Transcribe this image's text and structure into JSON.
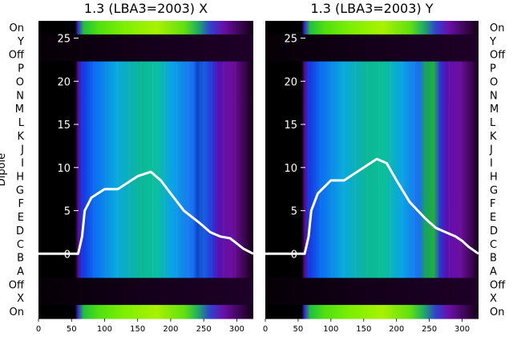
{
  "chart_data": [
    {
      "type": "heatmap",
      "title": "1.3 (LBA3=2003) X",
      "ylabel": "Dipole",
      "x_ticks": [
        0,
        50,
        100,
        150,
        200,
        250,
        300
      ],
      "xlim": [
        0,
        325
      ],
      "overlay_ylim": [
        -7.5,
        27
      ],
      "overlay_yticks": [
        0,
        5,
        10,
        15,
        20,
        25
      ],
      "dipole_labels": [
        "On",
        "Y",
        "Off",
        "P",
        "O",
        "N",
        "M",
        "L",
        "K",
        "J",
        "I",
        "H",
        "G",
        "F",
        "E",
        "D",
        "C",
        "B",
        "A",
        "Off",
        "X",
        "On"
      ],
      "overlay_series": {
        "x": [
          0,
          60,
          66,
          70,
          80,
          100,
          120,
          150,
          170,
          185,
          200,
          220,
          245,
          260,
          275,
          290,
          300,
          310,
          325
        ],
        "values": [
          0,
          0,
          2,
          5,
          6.5,
          7.5,
          7.5,
          9,
          9.5,
          8.5,
          7,
          5,
          3.5,
          2.5,
          2,
          1.8,
          1.2,
          0.6,
          0
        ]
      }
    },
    {
      "type": "heatmap",
      "title": "1.3 (LBA3=2003) Y",
      "ylabel": "",
      "x_ticks": [
        0,
        50,
        100,
        150,
        200,
        250,
        300
      ],
      "xlim": [
        0,
        325
      ],
      "overlay_ylim": [
        -7.5,
        27
      ],
      "overlay_yticks": [
        0,
        5,
        10,
        15,
        20,
        25
      ],
      "dipole_labels": [
        "On",
        "Y",
        "Off",
        "P",
        "O",
        "N",
        "M",
        "L",
        "K",
        "J",
        "I",
        "H",
        "G",
        "F",
        "E",
        "D",
        "C",
        "B",
        "A",
        "Off",
        "X",
        "On"
      ],
      "overlay_series": {
        "x": [
          0,
          60,
          66,
          70,
          80,
          100,
          120,
          150,
          170,
          185,
          200,
          220,
          245,
          260,
          275,
          290,
          300,
          310,
          325
        ],
        "values": [
          0,
          0,
          2,
          5,
          7,
          8.5,
          8.5,
          10,
          11,
          10.5,
          8.5,
          6,
          4,
          3,
          2.5,
          2,
          1.5,
          0.8,
          0
        ]
      }
    }
  ]
}
